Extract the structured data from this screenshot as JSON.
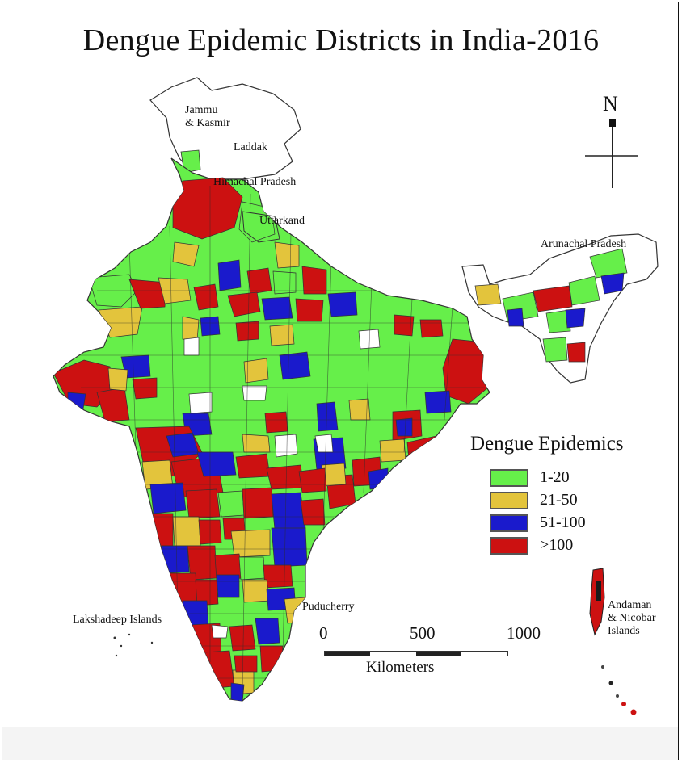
{
  "map": {
    "title": "Dengue Epidemic Districts in India-2016",
    "north_arrow": "N",
    "place_labels": [
      {
        "id": "jammu-kasmir",
        "text": "Jammu\n& Kasmir"
      },
      {
        "id": "laddak",
        "text": "Laddak"
      },
      {
        "id": "himachal-pradesh",
        "text": "Himachal Pradesh"
      },
      {
        "id": "uttarkand",
        "text": "Uttarkand"
      },
      {
        "id": "arunachal-pradesh",
        "text": "Arunachal Pradesh"
      },
      {
        "id": "puducherry",
        "text": "Puducherry"
      },
      {
        "id": "lakshadeep-islands",
        "text": "Lakshadeep Islands"
      },
      {
        "id": "andaman-nicobar",
        "text": "Andaman\n& Nicobar\nIslands"
      }
    ],
    "legend": {
      "title": "Dengue Epidemics",
      "items": [
        {
          "label": "1-20",
          "color": "#66ef4a"
        },
        {
          "label": "21-50",
          "color": "#e3c43c"
        },
        {
          "label": "51-100",
          "color": "#1a1acc"
        },
        {
          "label": ">100",
          "color": "#cc1111"
        }
      ]
    },
    "scale_bar": {
      "ticks": [
        "0",
        "500",
        "1000"
      ],
      "unit": "Kilometers"
    },
    "colors": {
      "outline": "#333333",
      "no_data": "#ffffff"
    }
  }
}
